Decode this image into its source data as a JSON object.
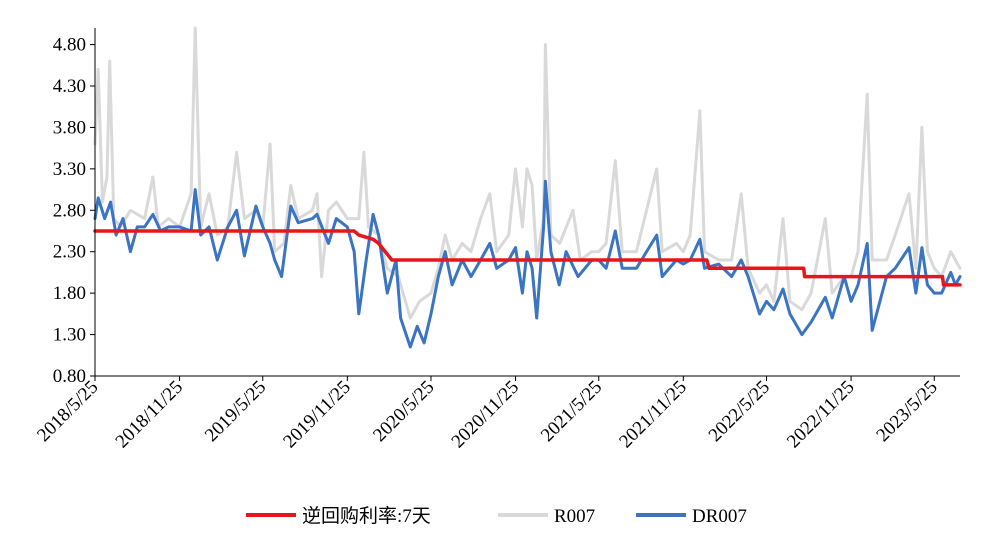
{
  "chart_data": {
    "type": "line",
    "title": "",
    "xlabel": "",
    "ylabel": "",
    "ylim": [
      0.8,
      5.0
    ],
    "yticks": [
      "0.80",
      "1.30",
      "1.80",
      "2.30",
      "2.80",
      "3.30",
      "3.80",
      "4.30",
      "4.80"
    ],
    "xticks": [
      "2018/5/25",
      "2018/11/25",
      "2019/5/25",
      "2019/11/25",
      "2020/5/25",
      "2020/11/25",
      "2021/5/25",
      "2021/11/25",
      "2022/5/25",
      "2022/11/25",
      "2023/5/25"
    ],
    "xlim": [
      "2018/5/25",
      "2023/7/20"
    ],
    "legend_position": "bottom",
    "grid": false,
    "series": [
      {
        "name": "逆回购利率:7天",
        "color": "#e8151a",
        "points": [
          [
            "2018/5/25",
            2.55
          ],
          [
            "2019/12/10",
            2.55
          ],
          [
            "2019/12/20",
            2.5
          ],
          [
            "2020/1/20",
            2.45
          ],
          [
            "2020/2/1",
            2.4
          ],
          [
            "2020/3/1",
            2.2
          ],
          [
            "2020/11/25",
            2.2
          ],
          [
            "2020/12/20",
            2.2
          ],
          [
            "2022/1/15",
            2.2
          ],
          [
            "2022/1/20",
            2.1
          ],
          [
            "2022/8/14",
            2.1
          ],
          [
            "2022/8/16",
            2.0
          ],
          [
            "2023/6/12",
            2.0
          ],
          [
            "2023/6/14",
            1.9
          ],
          [
            "2023/7/20",
            1.9
          ]
        ]
      },
      {
        "name": "R007",
        "color": "#d9d9d9",
        "points": [
          [
            "2018/5/25",
            3.6
          ],
          [
            "2018/6/1",
            4.5
          ],
          [
            "2018/6/10",
            2.9
          ],
          [
            "2018/6/20",
            3.2
          ],
          [
            "2018/6/26",
            4.6
          ],
          [
            "2018/7/5",
            2.7
          ],
          [
            "2018/7/20",
            2.6
          ],
          [
            "2018/8/10",
            2.8
          ],
          [
            "2018/9/10",
            2.7
          ],
          [
            "2018/9/28",
            3.2
          ],
          [
            "2018/10/10",
            2.6
          ],
          [
            "2018/11/1",
            2.7
          ],
          [
            "2018/11/25",
            2.6
          ],
          [
            "2018/12/20",
            3.0
          ],
          [
            "2018/12/29",
            5.0
          ],
          [
            "2019/1/10",
            2.6
          ],
          [
            "2019/1/28",
            3.0
          ],
          [
            "2019/2/15",
            2.5
          ],
          [
            "2019/3/10",
            2.6
          ],
          [
            "2019/3/29",
            3.5
          ],
          [
            "2019/4/15",
            2.7
          ],
          [
            "2019/5/10",
            2.8
          ],
          [
            "2019/5/25",
            2.6
          ],
          [
            "2019/6/10",
            3.6
          ],
          [
            "2019/6/20",
            2.3
          ],
          [
            "2019/7/10",
            2.4
          ],
          [
            "2019/7/25",
            3.1
          ],
          [
            "2019/8/10",
            2.7
          ],
          [
            "2019/9/10",
            2.8
          ],
          [
            "2019/9/20",
            3.0
          ],
          [
            "2019/9/30",
            2.0
          ],
          [
            "2019/10/15",
            2.8
          ],
          [
            "2019/11/1",
            2.9
          ],
          [
            "2019/11/25",
            2.7
          ],
          [
            "2019/12/20",
            2.7
          ],
          [
            "2019/12/31",
            3.5
          ],
          [
            "2020/1/10",
            2.6
          ],
          [
            "2020/2/1",
            2.5
          ],
          [
            "2020/2/20",
            2.1
          ],
          [
            "2020/3/15",
            2.0
          ],
          [
            "2020/4/10",
            1.5
          ],
          [
            "2020/4/30",
            1.7
          ],
          [
            "2020/5/25",
            1.8
          ],
          [
            "2020/6/10",
            2.1
          ],
          [
            "2020/6/25",
            2.5
          ],
          [
            "2020/7/10",
            2.2
          ],
          [
            "2020/8/1",
            2.4
          ],
          [
            "2020/8/20",
            2.3
          ],
          [
            "2020/9/10",
            2.7
          ],
          [
            "2020/9/30",
            3.0
          ],
          [
            "2020/10/15",
            2.3
          ],
          [
            "2020/11/10",
            2.5
          ],
          [
            "2020/11/25",
            3.3
          ],
          [
            "2020/12/10",
            2.6
          ],
          [
            "2020/12/20",
            3.3
          ],
          [
            "2020/12/31",
            3.1
          ],
          [
            "2021/1/10",
            2.2
          ],
          [
            "2021/1/25",
            2.7
          ],
          [
            "2021/1/29",
            4.8
          ],
          [
            "2021/2/10",
            2.5
          ],
          [
            "2021/3/1",
            2.4
          ],
          [
            "2021/3/30",
            2.8
          ],
          [
            "2021/4/15",
            2.2
          ],
          [
            "2021/5/10",
            2.3
          ],
          [
            "2021/5/25",
            2.3
          ],
          [
            "2021/6/10",
            2.4
          ],
          [
            "2021/6/30",
            3.4
          ],
          [
            "2021/7/15",
            2.3
          ],
          [
            "2021/8/15",
            2.3
          ],
          [
            "2021/9/28",
            3.3
          ],
          [
            "2021/10/10",
            2.3
          ],
          [
            "2021/11/10",
            2.4
          ],
          [
            "2021/11/25",
            2.3
          ],
          [
            "2021/12/10",
            2.5
          ],
          [
            "2021/12/31",
            4.0
          ],
          [
            "2022/1/10",
            2.3
          ],
          [
            "2022/2/10",
            2.2
          ],
          [
            "2022/3/10",
            2.2
          ],
          [
            "2022/3/31",
            3.0
          ],
          [
            "2022/4/15",
            2.1
          ],
          [
            "2022/5/10",
            1.8
          ],
          [
            "2022/5/25",
            1.9
          ],
          [
            "2022/6/10",
            1.7
          ],
          [
            "2022/6/30",
            2.7
          ],
          [
            "2022/7/15",
            1.7
          ],
          [
            "2022/8/10",
            1.6
          ],
          [
            "2022/8/30",
            1.8
          ],
          [
            "2022/9/30",
            2.7
          ],
          [
            "2022/10/15",
            1.8
          ],
          [
            "2022/11/10",
            2.0
          ],
          [
            "2022/11/25",
            2.0
          ],
          [
            "2022/12/10",
            2.3
          ],
          [
            "2022/12/30",
            4.2
          ],
          [
            "2023/1/10",
            2.2
          ],
          [
            "2023/2/10",
            2.2
          ],
          [
            "2023/3/1",
            2.5
          ],
          [
            "2023/3/31",
            3.0
          ],
          [
            "2023/4/15",
            2.1
          ],
          [
            "2023/4/28",
            3.8
          ],
          [
            "2023/5/10",
            2.3
          ],
          [
            "2023/5/25",
            2.1
          ],
          [
            "2023/6/10",
            2.0
          ],
          [
            "2023/6/30",
            2.3
          ],
          [
            "2023/7/10",
            2.2
          ],
          [
            "2023/7/20",
            2.1
          ]
        ]
      },
      {
        "name": "DR007",
        "color": "#3a74c2",
        "points": [
          [
            "2018/5/25",
            2.7
          ],
          [
            "2018/6/1",
            2.95
          ],
          [
            "2018/6/15",
            2.7
          ],
          [
            "2018/6/28",
            2.9
          ],
          [
            "2018/7/10",
            2.5
          ],
          [
            "2018/7/25",
            2.7
          ],
          [
            "2018/8/10",
            2.3
          ],
          [
            "2018/8/25",
            2.6
          ],
          [
            "2018/9/10",
            2.6
          ],
          [
            "2018/9/28",
            2.75
          ],
          [
            "2018/10/15",
            2.55
          ],
          [
            "2018/11/1",
            2.6
          ],
          [
            "2018/11/25",
            2.6
          ],
          [
            "2018/12/20",
            2.55
          ],
          [
            "2018/12/29",
            3.05
          ],
          [
            "2019/1/10",
            2.5
          ],
          [
            "2019/1/28",
            2.6
          ],
          [
            "2019/2/15",
            2.2
          ],
          [
            "2019/3/10",
            2.6
          ],
          [
            "2019/3/29",
            2.8
          ],
          [
            "2019/4/15",
            2.25
          ],
          [
            "2019/5/10",
            2.85
          ],
          [
            "2019/5/25",
            2.6
          ],
          [
            "2019/6/10",
            2.4
          ],
          [
            "2019/6/20",
            2.2
          ],
          [
            "2019/7/5",
            2.0
          ],
          [
            "2019/7/25",
            2.85
          ],
          [
            "2019/8/10",
            2.65
          ],
          [
            "2019/9/10",
            2.7
          ],
          [
            "2019/9/20",
            2.75
          ],
          [
            "2019/10/15",
            2.4
          ],
          [
            "2019/11/1",
            2.7
          ],
          [
            "2019/11/25",
            2.6
          ],
          [
            "2019/12/10",
            2.3
          ],
          [
            "2019/12/20",
            1.55
          ],
          [
            "2020/1/5",
            2.2
          ],
          [
            "2020/1/20",
            2.75
          ],
          [
            "2020/2/1",
            2.5
          ],
          [
            "2020/2/20",
            1.8
          ],
          [
            "2020/3/10",
            2.2
          ],
          [
            "2020/3/20",
            1.5
          ],
          [
            "2020/4/10",
            1.15
          ],
          [
            "2020/4/25",
            1.4
          ],
          [
            "2020/5/10",
            1.2
          ],
          [
            "2020/5/25",
            1.55
          ],
          [
            "2020/6/10",
            2.0
          ],
          [
            "2020/6/25",
            2.3
          ],
          [
            "2020/7/10",
            1.9
          ],
          [
            "2020/8/1",
            2.2
          ],
          [
            "2020/8/20",
            2.0
          ],
          [
            "2020/9/10",
            2.2
          ],
          [
            "2020/9/30",
            2.4
          ],
          [
            "2020/10/15",
            2.1
          ],
          [
            "2020/11/10",
            2.2
          ],
          [
            "2020/11/25",
            2.35
          ],
          [
            "2020/12/10",
            1.8
          ],
          [
            "2020/12/20",
            2.3
          ],
          [
            "2020/12/31",
            2.1
          ],
          [
            "2021/1/10",
            1.5
          ],
          [
            "2021/1/25",
            2.6
          ],
          [
            "2021/1/29",
            3.15
          ],
          [
            "2021/2/10",
            2.3
          ],
          [
            "2021/2/28",
            1.9
          ],
          [
            "2021/3/15",
            2.3
          ],
          [
            "2021/4/10",
            2.0
          ],
          [
            "2021/5/10",
            2.2
          ],
          [
            "2021/5/25",
            2.2
          ],
          [
            "2021/6/10",
            2.1
          ],
          [
            "2021/6/30",
            2.55
          ],
          [
            "2021/7/15",
            2.1
          ],
          [
            "2021/8/15",
            2.1
          ],
          [
            "2021/9/28",
            2.5
          ],
          [
            "2021/10/10",
            2.0
          ],
          [
            "2021/11/10",
            2.2
          ],
          [
            "2021/11/25",
            2.15
          ],
          [
            "2021/12/10",
            2.2
          ],
          [
            "2021/12/31",
            2.45
          ],
          [
            "2022/1/10",
            2.1
          ],
          [
            "2022/2/10",
            2.15
          ],
          [
            "2022/3/10",
            2.0
          ],
          [
            "2022/3/31",
            2.2
          ],
          [
            "2022/4/15",
            2.0
          ],
          [
            "2022/5/10",
            1.55
          ],
          [
            "2022/5/25",
            1.7
          ],
          [
            "2022/6/10",
            1.6
          ],
          [
            "2022/6/30",
            1.85
          ],
          [
            "2022/7/15",
            1.55
          ],
          [
            "2022/8/10",
            1.3
          ],
          [
            "2022/8/30",
            1.45
          ],
          [
            "2022/9/30",
            1.75
          ],
          [
            "2022/10/15",
            1.5
          ],
          [
            "2022/11/10",
            2.0
          ],
          [
            "2022/11/25",
            1.7
          ],
          [
            "2022/12/10",
            1.9
          ],
          [
            "2022/12/30",
            2.4
          ],
          [
            "2023/1/10",
            1.35
          ],
          [
            "2023/2/10",
            2.0
          ],
          [
            "2023/3/1",
            2.1
          ],
          [
            "2023/3/31",
            2.35
          ],
          [
            "2023/4/15",
            1.8
          ],
          [
            "2023/4/28",
            2.35
          ],
          [
            "2023/5/10",
            1.9
          ],
          [
            "2023/5/25",
            1.8
          ],
          [
            "2023/6/10",
            1.8
          ],
          [
            "2023/6/30",
            2.05
          ],
          [
            "2023/7/10",
            1.9
          ],
          [
            "2023/7/20",
            2.0
          ]
        ]
      }
    ]
  }
}
